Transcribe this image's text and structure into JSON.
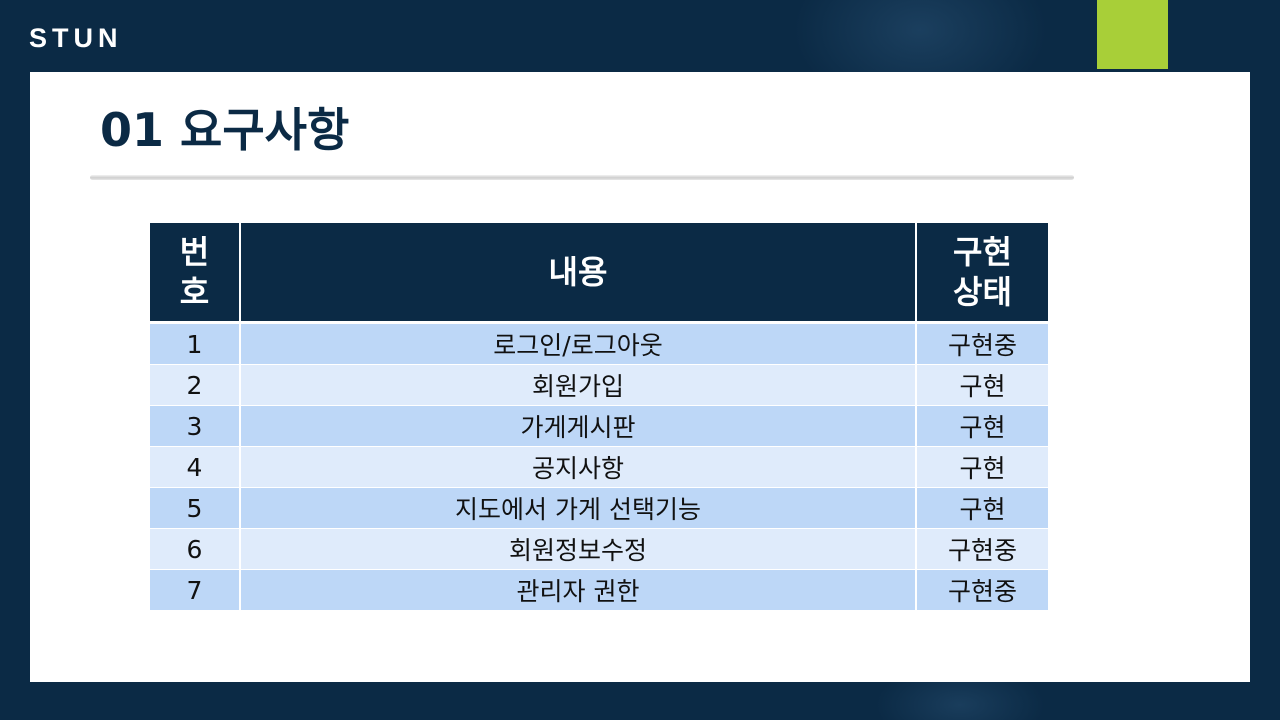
{
  "brand": "STUN",
  "colors": {
    "background": "#0b2a45",
    "accent": "#a8cf38",
    "header_fill": "#0b2a45",
    "row_odd": "#bdd7f7",
    "row_even": "#dfebfb"
  },
  "slide": {
    "title": "01 요구사항"
  },
  "table": {
    "headers": {
      "number": "번호",
      "content": "내용",
      "status": "구현상태"
    },
    "rows": [
      {
        "number": "1",
        "content": "로그인/로그아웃",
        "status": "구현중"
      },
      {
        "number": "2",
        "content": "회원가입",
        "status": "구현"
      },
      {
        "number": "3",
        "content": "가게게시판",
        "status": "구현"
      },
      {
        "number": "4",
        "content": "공지사항",
        "status": "구현"
      },
      {
        "number": "5",
        "content": "지도에서 가게 선택기능",
        "status": "구현"
      },
      {
        "number": "6",
        "content": "회원정보수정",
        "status": "구현중"
      },
      {
        "number": "7",
        "content": "관리자 권한",
        "status": "구현중"
      }
    ]
  }
}
